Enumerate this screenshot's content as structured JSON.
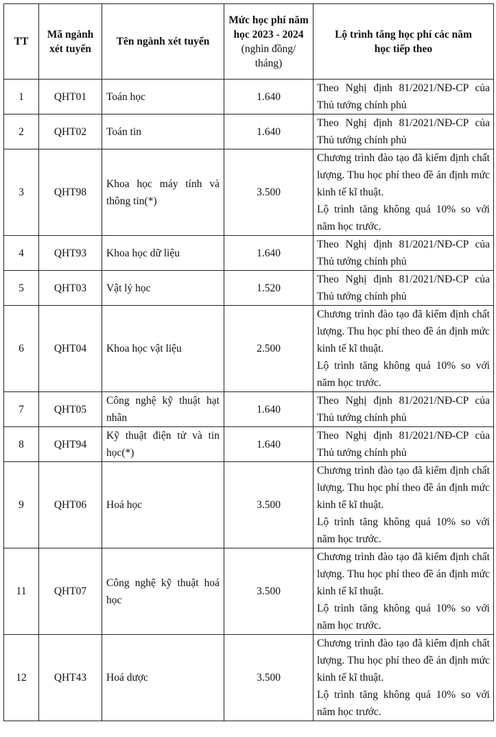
{
  "headers": {
    "tt": "TT",
    "code": "Mã ngành xét tuyển",
    "name": "Tên ngành xét tuyển",
    "fee": "Mức học phí năm học 2023 - 2024",
    "fee_unit": "(nghìn đồng/ tháng)",
    "roadmap": "Lộ trình tăng học phí các năm học tiếp theo"
  },
  "rows": [
    {
      "tt": "1",
      "code": "QHT01",
      "name": "Toán học",
      "fee": "1.640",
      "note": "Theo Nghị định 81/2021/NĐ-CP của Thủ tướng chính phủ",
      "note2": ""
    },
    {
      "tt": "2",
      "code": "QHT02",
      "name": "Toán tin",
      "fee": "1.640",
      "note": "Theo Nghị định 81/2021/NĐ-CP của Thủ tướng chính phủ",
      "note2": ""
    },
    {
      "tt": "3",
      "code": "QHT98",
      "name": "Khoa học máy tính và thông tin(*)",
      "fee": "3.500",
      "note": "Chương trình đào tạo đã kiểm định chất lượng. Thu học phí theo đề án định mức kinh tế kĩ thuật.",
      "note2": "Lộ trình tăng không  quá 10% so với năm học trước."
    },
    {
      "tt": "4",
      "code": "QHT93",
      "name": "Khoa học dữ liệu",
      "fee": "1.640",
      "note": "Theo Nghị định 81/2021/NĐ-CP của Thủ tướng chính phủ",
      "note2": ""
    },
    {
      "tt": "5",
      "code": "QHT03",
      "name": "Vật lý học",
      "fee": "1.520",
      "note": "Theo Nghị định 81/2021/NĐ-CP của Thủ tướng chính phủ",
      "note2": ""
    },
    {
      "tt": "6",
      "code": "QHT04",
      "name": "Khoa học vật liệu",
      "fee": "2.500",
      "note": "Chương trình đào tạo đã kiểm định chất lượng. Thu học phí theo đề án định mức kinh tế kĩ thuật.",
      "note2": "Lộ trình tăng không  quá 10% so với năm học trước."
    },
    {
      "tt": "7",
      "code": "QHT05",
      "name": "Công nghệ kỹ thuật hạt nhân",
      "fee": "1.640",
      "note": "Theo Nghị định 81/2021/NĐ-CP của Thủ tướng chính phủ",
      "note2": ""
    },
    {
      "tt": "8",
      "code": "QHT94",
      "name": "Kỹ thuật điện tử và tin học(*)",
      "fee": "1.640",
      "note": "Theo Nghị định 81/2021/NĐ-CP của Thủ tướng chính phủ",
      "note2": ""
    },
    {
      "tt": "9",
      "code": "QHT06",
      "name": "Hoá học",
      "fee": "3.500",
      "note": "Chương trình đào tạo đã kiểm định chất lượng. Thu học phí theo đề án định mức kinh tế kĩ thuật.",
      "note2": "Lộ trình tăng không  quá 10% so với năm học trước."
    },
    {
      "tt": "11",
      "code": "QHT07",
      "name": "Công nghệ kỹ thuật hoá học",
      "fee": "3.500",
      "note": "Chương trình đào tạo đã kiểm định chất lượng. Thu học phí theo đề án định mức kinh tế kĩ thuật.",
      "note2": "Lộ trình tăng không  quá 10% so với năm học trước."
    },
    {
      "tt": "12",
      "code": "QHT43",
      "name": "Hoá dược",
      "fee": "3.500",
      "note": "Chương trình đào tạo đã kiểm định chất lượng. Thu học phí theo đề án định mức kinh tế kĩ thuật.",
      "note2": "Lộ trình tăng không  quá 10% so với năm học trước."
    }
  ]
}
